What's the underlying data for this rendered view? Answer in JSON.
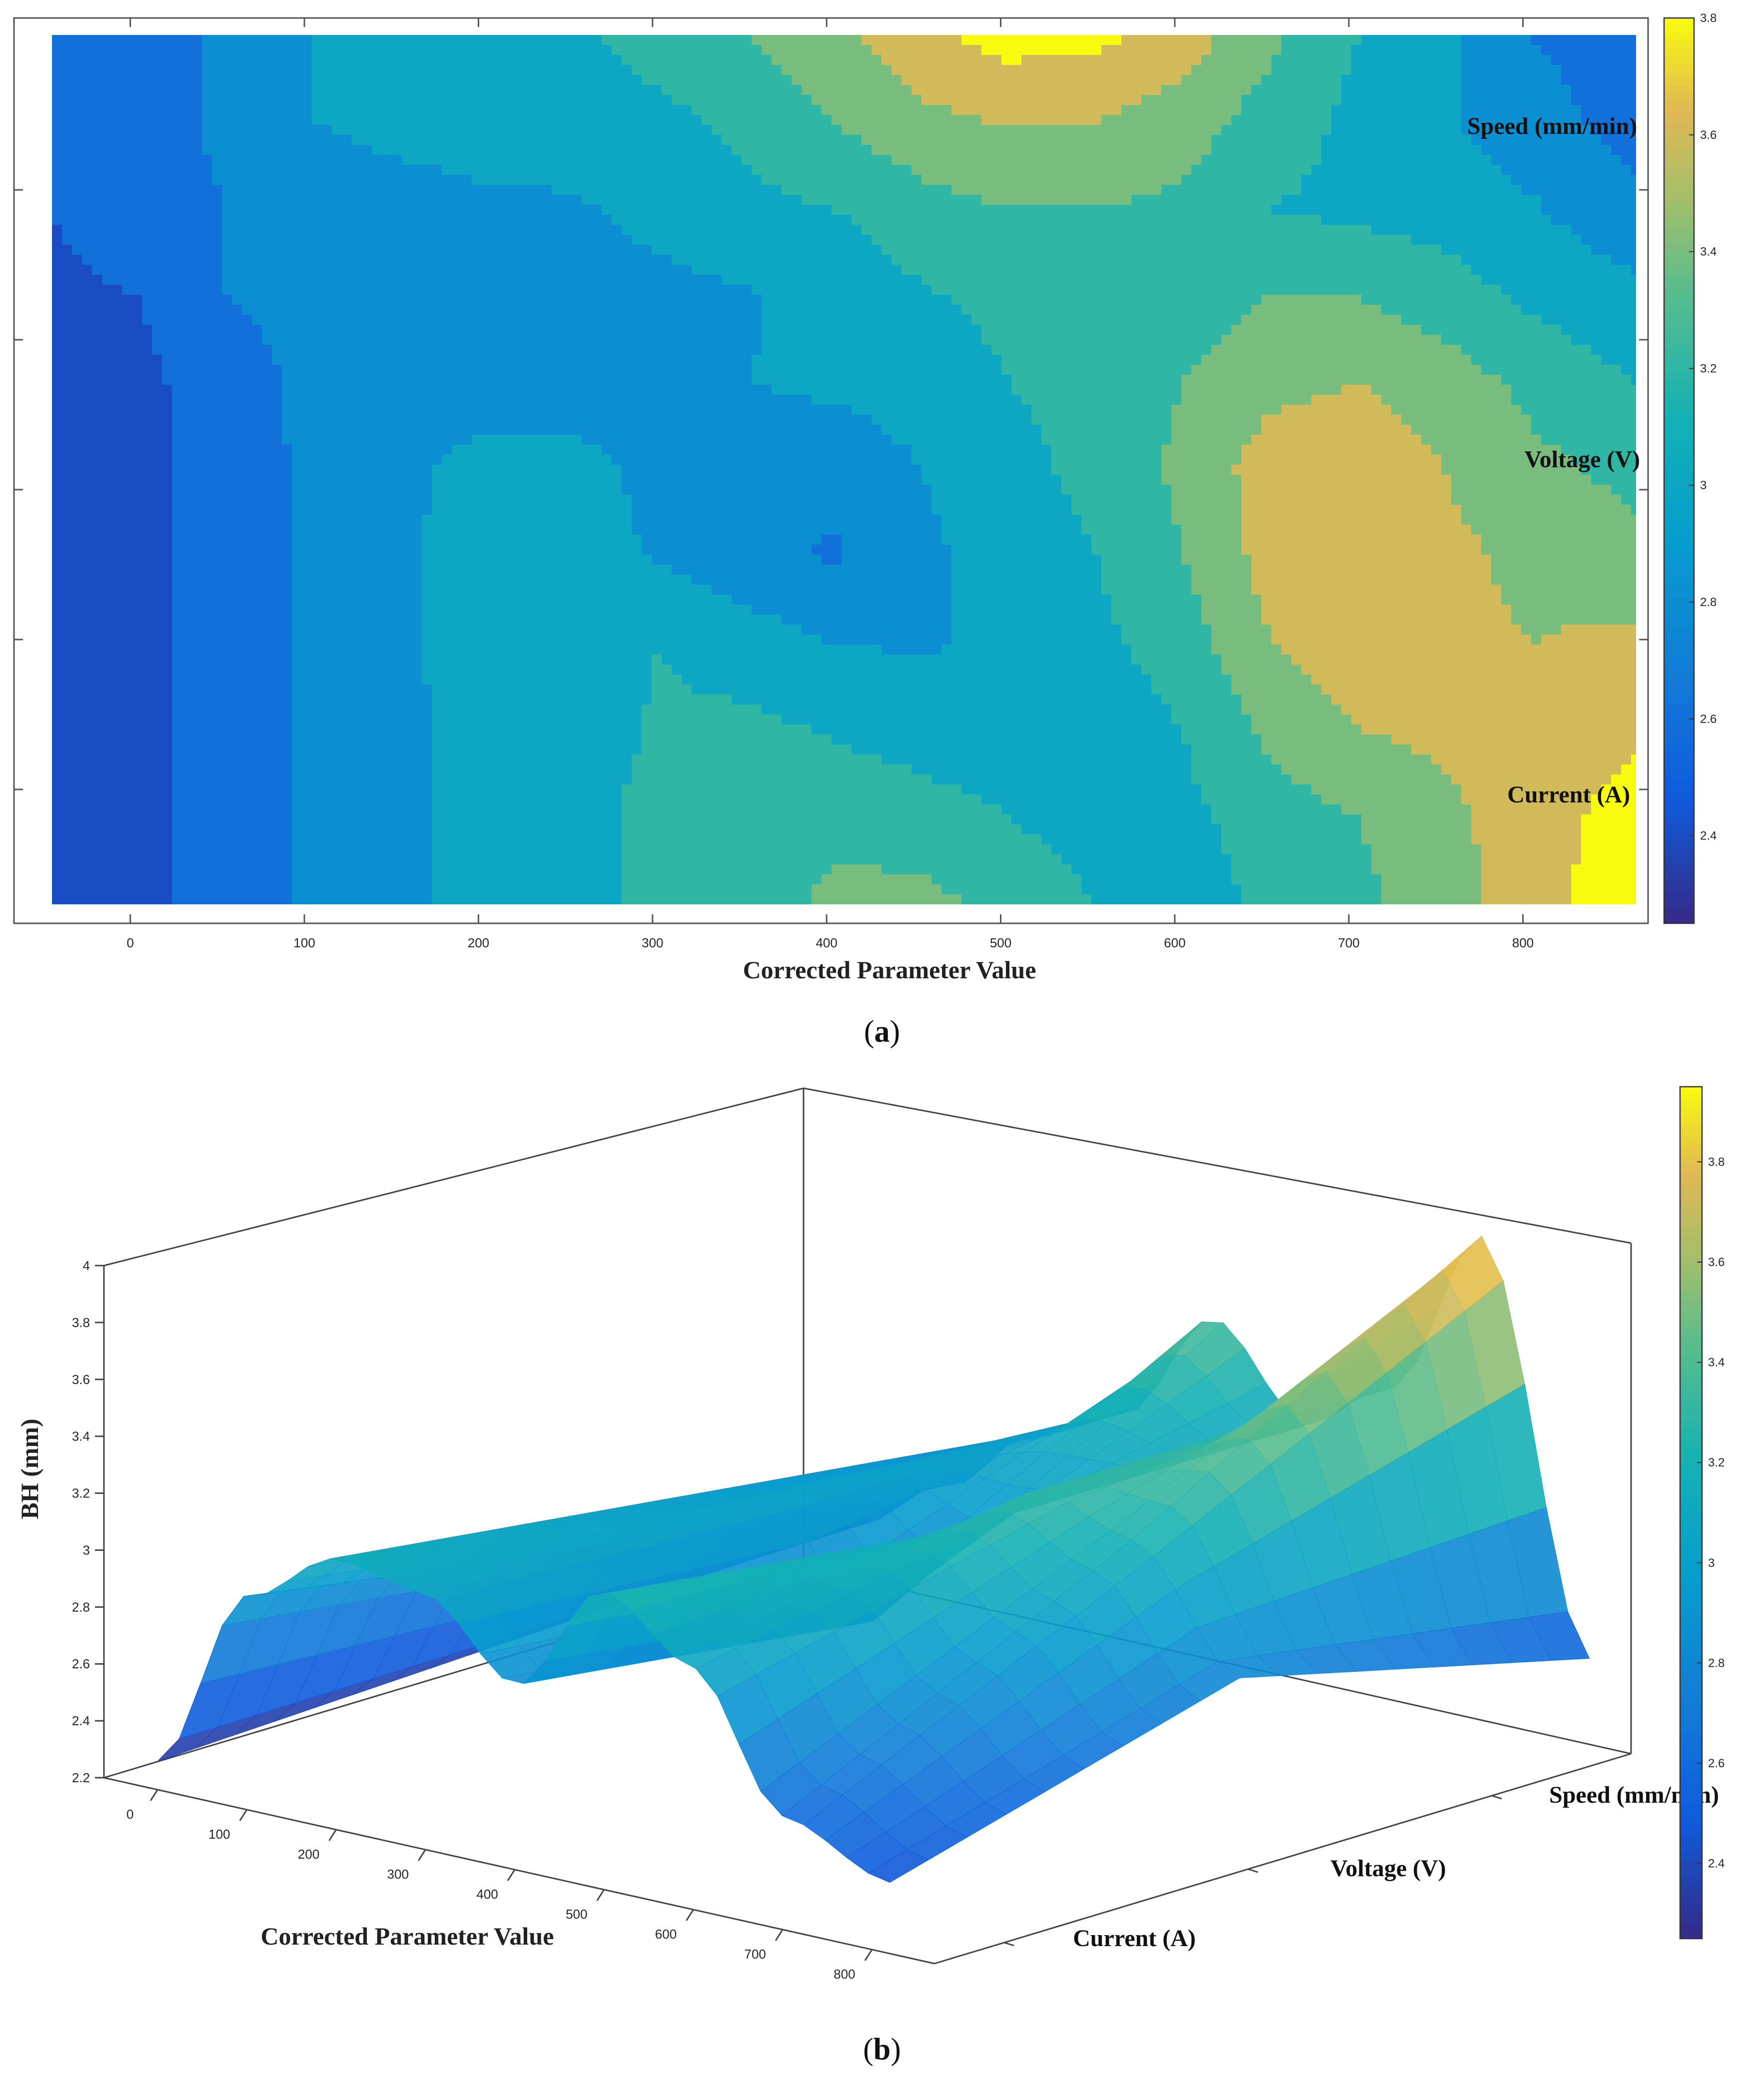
{
  "figure": {
    "panel_a_tag": "a",
    "panel_b_tag": "b"
  },
  "chart_data": [
    {
      "id": "a",
      "type": "heatmap",
      "subtype": "filled-contour",
      "title": "",
      "xlabel": "Corrected Parameter Value",
      "ylabel": "",
      "xlim": [
        -45,
        865
      ],
      "x_ticks": [
        0,
        100,
        200,
        300,
        400,
        500,
        600,
        700,
        800
      ],
      "y_ticks_count": 5,
      "annotations": [
        "Speed (mm/min)",
        "Voltage (V)",
        "Current (A)"
      ],
      "colorbar": {
        "min": 2.25,
        "max": 3.8,
        "ticks": [
          2.4,
          2.6,
          2.8,
          3,
          3.2,
          3.4,
          3.6,
          3.8
        ]
      },
      "levels": [
        2.3,
        2.5,
        2.7,
        2.9,
        3.1,
        3.3,
        3.5,
        3.7
      ],
      "grid_x": [
        -45,
        5,
        55,
        105,
        155,
        205,
        255,
        305,
        355,
        405,
        455,
        505,
        555,
        605,
        655,
        705,
        755,
        805,
        865
      ],
      "grid_rows": [
        [
          2.55,
          2.66,
          2.72,
          2.9,
          2.98,
          3.05,
          3.05,
          3.2,
          3.3,
          3.45,
          3.65,
          3.78,
          3.75,
          3.6,
          3.35,
          3.1,
          2.95,
          2.7,
          2.55
        ],
        [
          2.52,
          2.66,
          2.72,
          2.9,
          2.93,
          2.95,
          2.98,
          3.05,
          3.15,
          3.3,
          3.45,
          3.52,
          3.5,
          3.4,
          3.2,
          3.05,
          2.92,
          2.8,
          2.6
        ],
        [
          2.5,
          2.66,
          2.7,
          2.85,
          2.86,
          2.88,
          2.88,
          2.95,
          3.05,
          3.1,
          3.22,
          3.3,
          3.3,
          3.25,
          3.1,
          3.05,
          3.0,
          2.92,
          2.75
        ],
        [
          2.45,
          2.5,
          2.7,
          2.78,
          2.8,
          2.84,
          2.85,
          2.85,
          2.88,
          2.98,
          3.08,
          3.15,
          3.18,
          3.2,
          3.3,
          3.3,
          3.2,
          3.05,
          2.95
        ],
        [
          2.35,
          2.45,
          2.6,
          2.75,
          2.78,
          2.8,
          2.82,
          2.88,
          2.9,
          2.95,
          3.0,
          3.1,
          3.15,
          3.3,
          3.45,
          3.5,
          3.4,
          3.25,
          3.1
        ],
        [
          2.3,
          2.45,
          2.6,
          2.74,
          2.85,
          2.98,
          2.95,
          2.85,
          2.75,
          2.75,
          2.9,
          3.05,
          3.15,
          3.35,
          3.6,
          3.65,
          3.5,
          3.35,
          3.25
        ],
        [
          2.3,
          2.45,
          2.6,
          2.74,
          2.88,
          2.98,
          2.98,
          2.88,
          2.75,
          2.68,
          2.85,
          3.0,
          3.1,
          3.3,
          3.58,
          3.62,
          3.55,
          3.45,
          3.35
        ],
        [
          2.3,
          2.45,
          2.6,
          2.74,
          2.88,
          2.98,
          3.05,
          3.1,
          3.0,
          2.9,
          2.88,
          2.95,
          3.05,
          3.2,
          3.5,
          3.6,
          3.55,
          3.5,
          3.55
        ],
        [
          2.3,
          2.45,
          2.6,
          2.74,
          2.85,
          2.98,
          3.02,
          3.12,
          3.15,
          3.08,
          3.0,
          2.95,
          2.98,
          3.1,
          3.35,
          3.5,
          3.55,
          3.55,
          3.65
        ],
        [
          2.3,
          2.45,
          2.6,
          2.74,
          2.85,
          2.98,
          3.05,
          3.15,
          3.2,
          3.25,
          3.2,
          3.1,
          3.0,
          3.05,
          3.2,
          3.3,
          3.45,
          3.6,
          3.8
        ],
        [
          2.3,
          2.45,
          2.6,
          2.74,
          2.85,
          2.98,
          3.05,
          3.15,
          3.2,
          3.35,
          3.35,
          3.25,
          3.1,
          3.0,
          3.15,
          3.25,
          3.4,
          3.65,
          3.8
        ]
      ]
    },
    {
      "id": "b",
      "type": "surface3d",
      "title": "",
      "xlabel": "Corrected Parameter Value",
      "ylabel": "BH (mm)",
      "zlim": [
        2.2,
        4
      ],
      "x_ticks": [
        0,
        100,
        200,
        300,
        400,
        500,
        600,
        700,
        800
      ],
      "z_ticks": [
        2.2,
        2.4,
        2.6,
        2.8,
        3,
        3.2,
        3.4,
        3.6,
        3.8,
        4
      ],
      "depth_labels": [
        "Current (A)",
        "Voltage (V)",
        "Speed (mm/min)"
      ],
      "colorbar": {
        "min": 2.25,
        "max": 3.95,
        "ticks": [
          2.4,
          2.6,
          2.8,
          3,
          3.2,
          3.4,
          3.6,
          3.8
        ]
      },
      "series": [
        {
          "name": "Current (A)",
          "x": [
            0,
            100,
            200,
            300,
            400,
            500,
            600,
            700,
            820
          ],
          "values": [
            2.3,
            2.95,
            3.15,
            3.1,
            2.85,
            3.25,
            3.05,
            2.6,
            2.45
          ]
        },
        {
          "name": "Voltage (V)",
          "x": [
            0,
            100,
            200,
            300,
            400,
            500,
            600,
            700,
            820
          ],
          "values": [
            2.35,
            2.75,
            3.0,
            3.05,
            2.7,
            3.1,
            3.3,
            3.2,
            2.8
          ]
        },
        {
          "name": "Speed (mm/min)",
          "x": [
            0,
            100,
            200,
            300,
            400,
            500,
            600,
            700,
            820
          ],
          "values": [
            2.4,
            2.6,
            2.85,
            3.0,
            3.4,
            3.1,
            3.3,
            3.9,
            2.5
          ]
        }
      ]
    }
  ]
}
